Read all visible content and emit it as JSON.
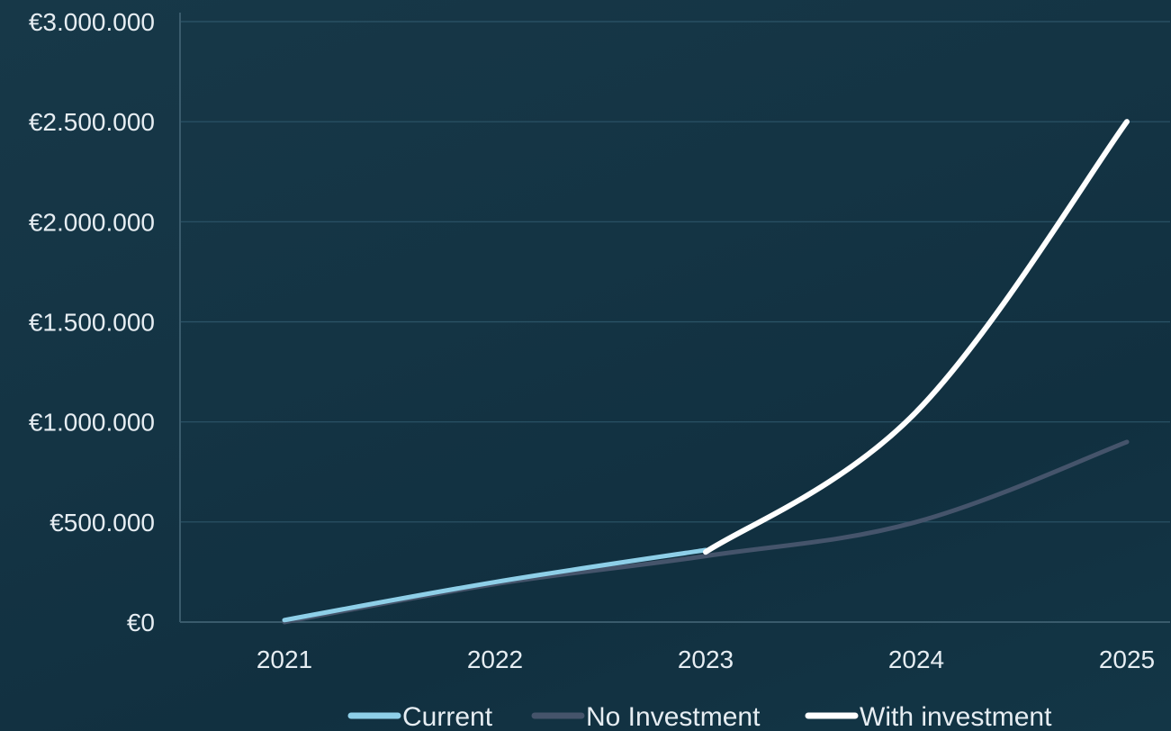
{
  "chart_data": {
    "type": "line",
    "title": "",
    "xlabel": "",
    "ylabel": "",
    "x": [
      2021,
      2022,
      2023,
      2024,
      2025
    ],
    "x_tick_labels": [
      "2021",
      "2022",
      "2023",
      "2024",
      "2025"
    ],
    "ylim": [
      0,
      3000000
    ],
    "y_ticks": [
      0,
      500000,
      1000000,
      1500000,
      2000000,
      2500000,
      3000000
    ],
    "y_tick_labels": [
      "€0",
      "€500.000",
      "€1.000.000",
      "€1.500.000",
      "€2.000.000",
      "€2.500.000",
      "€3.000.000"
    ],
    "grid": true,
    "legend_position": "bottom",
    "series": [
      {
        "name": "Current",
        "color": "#8ecfe8",
        "x": [
          2021,
          2022,
          2023
        ],
        "values": [
          10000,
          200000,
          360000
        ]
      },
      {
        "name": "No Investment",
        "color": "#45546b",
        "x": [
          2021,
          2022,
          2023,
          2024,
          2025
        ],
        "values": [
          0,
          190000,
          330000,
          500000,
          900000
        ]
      },
      {
        "name": "With investment",
        "color": "#ffffff",
        "x": [
          2023,
          2024,
          2025
        ],
        "values": [
          350000,
          1050000,
          2500000
        ]
      }
    ]
  }
}
